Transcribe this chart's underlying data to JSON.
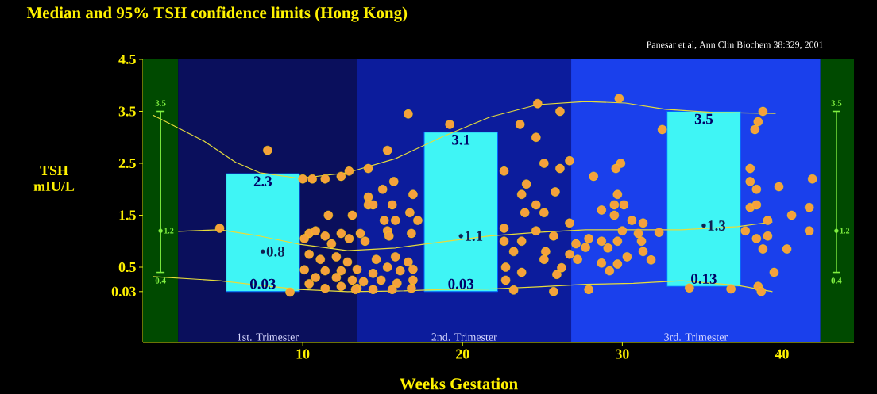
{
  "chart_data": {
    "type": "scatter",
    "title": "Median and 95% TSH confidence limits  (Hong Kong)",
    "xlabel": "Weeks Gestation",
    "ylabel": "TSH mIU/L",
    "xlim": [
      0,
      44.5
    ],
    "ylim": [
      -0.95,
      4.5
    ],
    "xticks": [
      10,
      20,
      30,
      40
    ],
    "yticks": [
      0.03,
      0.5,
      1.5,
      2.5,
      3.5,
      4.5
    ],
    "marker": "none",
    "series": [
      {
        "type": "bar",
        "color": "#3ff5f5",
        "x": [
          7.5,
          19.9,
          35.1
        ],
        "base": [
          0.03,
          0.03,
          0.13
        ],
        "values": [
          2.27,
          3.07,
          3.37
        ]
      },
      {
        "type": "line",
        "color": "#e6dc3c",
        "x": [
          0.6,
          3.8,
          5.8,
          7.3,
          9.8,
          12.8,
          15.8,
          18.8,
          21.7,
          24.7,
          27.7,
          30.2,
          32.7,
          35.7,
          39.6
        ],
        "values": [
          3.43,
          2.93,
          2.52,
          2.32,
          2.21,
          2.32,
          2.59,
          3.02,
          3.39,
          3.63,
          3.69,
          3.66,
          3.54,
          3.48,
          3.46
        ]
      },
      {
        "type": "line",
        "color": "#e6dc3c",
        "x": [
          2.2,
          4.8,
          7.3,
          9.8,
          12.8,
          15.8,
          18.8,
          21.7,
          24.7,
          27.7,
          30.7,
          33.7,
          37.2,
          39.4
        ],
        "values": [
          1.19,
          1.22,
          1.1,
          0.94,
          0.82,
          0.87,
          0.99,
          1.1,
          1.17,
          1.22,
          1.22,
          1.22,
          1.28,
          1.37
        ]
      },
      {
        "type": "line",
        "color": "#e6dc3c",
        "x": [
          0.6,
          4.8,
          7.3,
          9.8,
          12.8,
          15.8,
          18.8,
          21.7,
          24.7,
          27.7,
          30.7,
          33.7,
          37.2,
          39.4
        ],
        "values": [
          0.32,
          0.24,
          0.15,
          0.07,
          0.03,
          0.04,
          0.07,
          0.08,
          0.12,
          0.17,
          0.19,
          0.24,
          0.15,
          0.03
        ]
      },
      {
        "marker": "circle",
        "color": "#f5a03c",
        "x": [
          7.8,
          10.0,
          10.6,
          11.4,
          12.4,
          12.9,
          14.1,
          4.8,
          11.6,
          13.1,
          14.1,
          14.1,
          10.4,
          10.8,
          10.1,
          11.4,
          12.4,
          12.9,
          13.6,
          11.8,
          10.4,
          11.1,
          12.1,
          12.8,
          10.1,
          11.4,
          12.4,
          13.4,
          10.8,
          12.1,
          13.1,
          10.4,
          11.4,
          12.4,
          13.4,
          9.2,
          16.6,
          19.2,
          24.7,
          26.1,
          23.6,
          24.6,
          15.3,
          25.1,
          26.7,
          26.1,
          22.6,
          15.7,
          24.0,
          15.0,
          16.9,
          23.7,
          25.8,
          14.4,
          15.6,
          16.7,
          24.6,
          25.1,
          23.9,
          26.7,
          15.1,
          15.8,
          17.2,
          22.6,
          24.6,
          15.3,
          16.8,
          13.9,
          15.4,
          22.6,
          23.7,
          25.7,
          27.1,
          23.2,
          25.2,
          26.7,
          25.1,
          14.6,
          15.8,
          16.6,
          15.3,
          22.7,
          26.2,
          27.2,
          14.4,
          16.1,
          16.9,
          23.7,
          25.9,
          13.8,
          14.9,
          15.9,
          16.9,
          22.7,
          13.3,
          14.4,
          15.6,
          16.8,
          23.2,
          25.7,
          29.8,
          38.8,
          38.5,
          38.3,
          32.5,
          29.9,
          29.6,
          28.2,
          38.0,
          38.0,
          38.4,
          39.8,
          41.9,
          29.7,
          30.1,
          29.5,
          28.7,
          29.5,
          30.6,
          31.3,
          38.0,
          38.4,
          40.6,
          41.7,
          39.1,
          41.7,
          30.0,
          31.0,
          32.3,
          37.7,
          27.9,
          28.7,
          29.7,
          31.2,
          27.7,
          29.1,
          31.3,
          38.4,
          39.1,
          38.8,
          40.3,
          30.3,
          31.8,
          28.7,
          29.7,
          29.2,
          39.5,
          27.9,
          34.2,
          36.8,
          38.5,
          38.7
        ],
        "values": [
          2.75,
          2.2,
          2.2,
          2.2,
          2.25,
          2.35,
          2.4,
          1.25,
          1.5,
          1.5,
          1.85,
          1.7,
          1.15,
          1.2,
          1.05,
          1.1,
          1.15,
          1.05,
          1.15,
          0.95,
          0.75,
          0.65,
          0.7,
          0.6,
          0.45,
          0.43,
          0.43,
          0.46,
          0.3,
          0.3,
          0.25,
          0.18,
          0.09,
          0.13,
          0.09,
          0.02,
          3.45,
          3.25,
          3.65,
          3.5,
          3.25,
          3.0,
          2.75,
          2.5,
          2.55,
          2.4,
          2.35,
          2.15,
          2.1,
          2.0,
          1.9,
          1.9,
          1.95,
          1.7,
          1.7,
          1.55,
          1.7,
          1.55,
          1.55,
          1.35,
          1.4,
          1.4,
          1.4,
          1.25,
          1.2,
          1.2,
          1.15,
          1.0,
          1.1,
          1.0,
          1.0,
          1.1,
          0.95,
          0.8,
          0.8,
          0.75,
          0.65,
          0.65,
          0.7,
          0.6,
          0.5,
          0.5,
          0.49,
          0.65,
          0.38,
          0.43,
          0.46,
          0.4,
          0.36,
          0.22,
          0.25,
          0.19,
          0.25,
          0.25,
          0.07,
          0.07,
          0.07,
          0.09,
          0.06,
          0.03,
          3.75,
          3.5,
          3.3,
          3.15,
          3.15,
          2.5,
          2.4,
          2.25,
          2.4,
          2.15,
          2.0,
          2.05,
          2.2,
          1.9,
          1.7,
          1.7,
          1.6,
          1.5,
          1.4,
          1.35,
          1.65,
          1.7,
          1.5,
          1.65,
          1.4,
          1.2,
          1.2,
          1.15,
          1.17,
          1.2,
          1.05,
          1.0,
          1.0,
          1.0,
          0.88,
          0.87,
          0.8,
          1.05,
          1.1,
          0.85,
          0.85,
          0.7,
          0.64,
          0.58,
          0.56,
          0.43,
          0.4,
          0.07,
          0.1,
          0.08,
          0.13,
          0.03
        ]
      },
      {
        "type": "scatter",
        "marker": "circle",
        "color": "#80f040",
        "value_labels": [
          "1.2",
          "1.2"
        ],
        "x": [
          1.1,
          43.4
        ],
        "values": [
          1.2,
          1.2
        ],
        "errors": [
          [
            0.4,
            3.5
          ],
          [
            0.4,
            3.5
          ]
        ]
      },
      {
        "type": "scatter",
        "marker": "circle",
        "color": "#102050",
        "x": [
          7.5,
          19.9,
          35.1
        ],
        "values": [
          0.8,
          1.1,
          1.3
        ],
        "value_labels": [
          "0.8",
          "1.1",
          "1.3"
        ]
      }
    ],
    "bands": [
      {
        "axis": "x",
        "from": 0,
        "to": 2.2,
        "color": "#004a00"
      },
      {
        "axis": "x",
        "from": 2.2,
        "to": 13.4,
        "label": "1st. Trimester",
        "color": "#0a0f5c"
      },
      {
        "axis": "x",
        "from": 13.4,
        "to": 26.8,
        "label": "2nd. Trimester",
        "color": "#0c1c9c"
      },
      {
        "axis": "x",
        "from": 26.8,
        "to": 42.4,
        "label": "3rd. Trimester",
        "color": "#1a40ec"
      },
      {
        "axis": "x",
        "from": 42.4,
        "to": 44.5,
        "color": "#004a00"
      }
    ],
    "annotations": [
      "Panesar et al, Ann Clin Biochem 38:329, 2001",
      {
        "text": "2.3",
        "x": 7.5,
        "y": 2.3
      },
      {
        "text": "0.03",
        "x": 7.5,
        "y": 0.03
      },
      {
        "text": "3.1",
        "x": 19.9,
        "y": 3.1
      },
      {
        "text": "0.03",
        "x": 19.9,
        "y": 0.03
      },
      {
        "text": "3.5",
        "x": 35.1,
        "y": 3.5
      },
      {
        "text": "0.13",
        "x": 35.1,
        "y": 0.13
      },
      {
        "text": "3.5",
        "x": 1.1,
        "y": 3.5
      },
      {
        "text": "0.4",
        "x": 1.1,
        "y": 0.4
      },
      {
        "text": "3.5",
        "x": 43.4,
        "y": 3.5
      },
      {
        "text": "0.4",
        "x": 43.4,
        "y": 0.4
      }
    ]
  }
}
